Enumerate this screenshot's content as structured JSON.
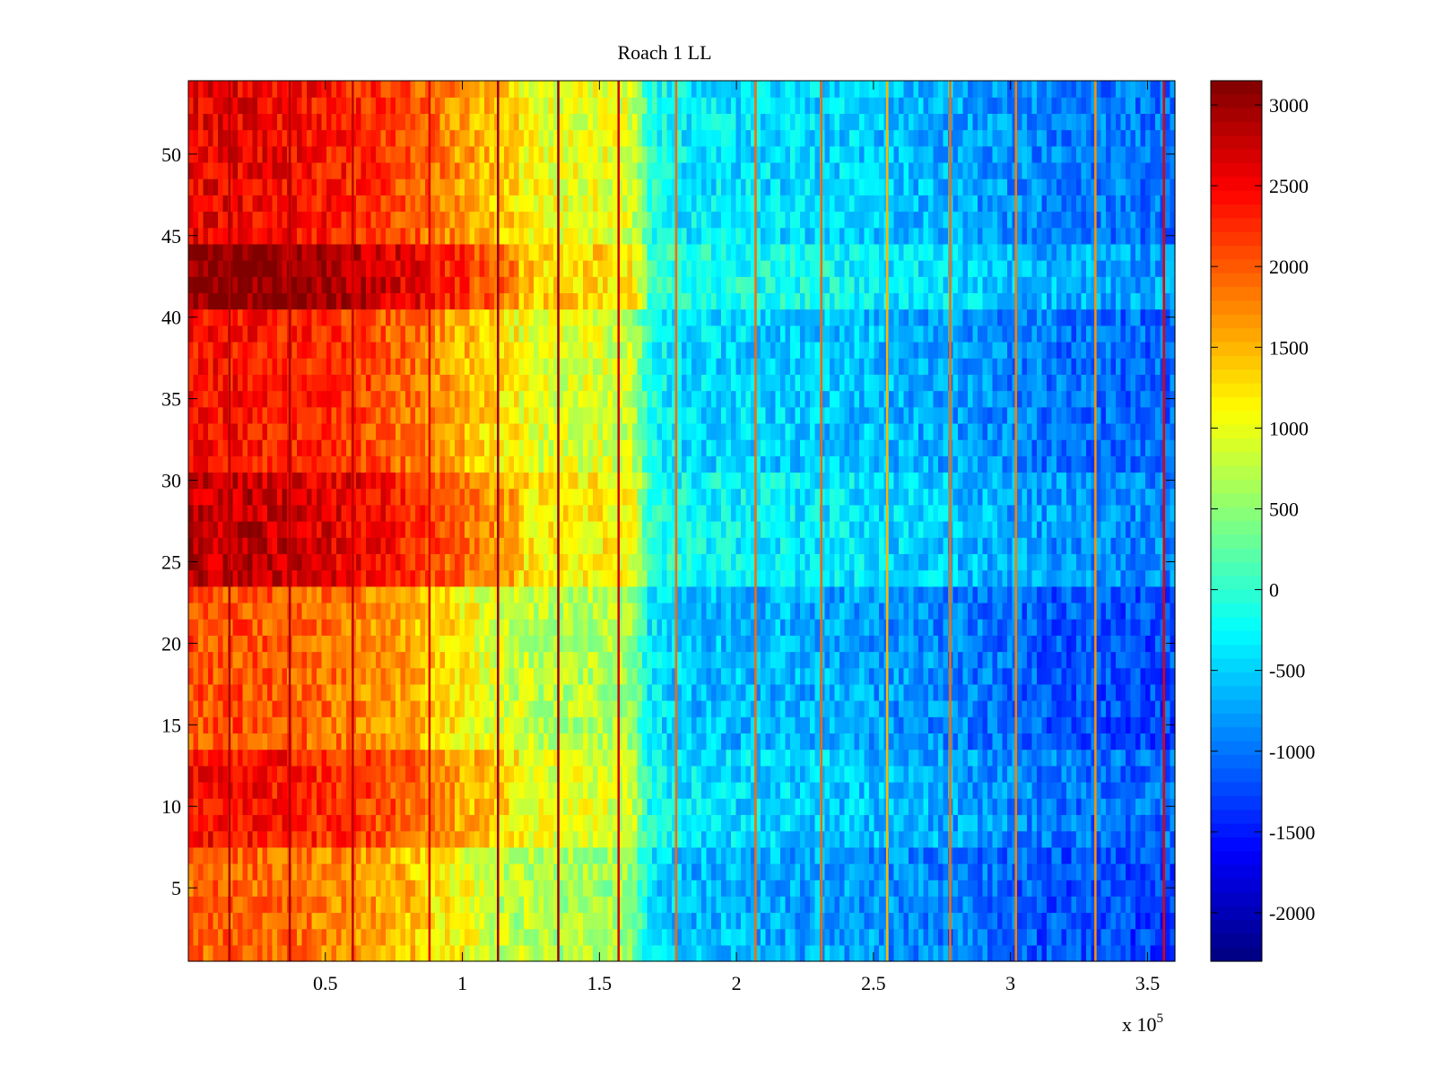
{
  "window_title": "Roach 1 LL",
  "chart_data": {
    "type": "heatmap",
    "title": "Roach 1 LL",
    "xlabel": "",
    "ylabel": "",
    "x_exponent_label": "x 10",
    "x_exponent_power": "5",
    "xlim": [
      0,
      360000
    ],
    "ylim": [
      0.5,
      54.5
    ],
    "x_ticks": [
      50000,
      100000,
      150000,
      200000,
      250000,
      300000,
      350000
    ],
    "x_tick_labels": [
      "0.5",
      "1",
      "1.5",
      "2",
      "2.5",
      "3",
      "3.5"
    ],
    "y_ticks": [
      5,
      10,
      15,
      20,
      25,
      30,
      35,
      40,
      45,
      50
    ],
    "y_tick_labels": [
      "5",
      "10",
      "15",
      "20",
      "25",
      "30",
      "35",
      "40",
      "45",
      "50"
    ],
    "rows": 54,
    "colormap": "jet",
    "colorbar": {
      "min": -2300,
      "max": 3150,
      "ticks": [
        3000,
        2500,
        2000,
        1500,
        1000,
        500,
        0,
        -500,
        -1000,
        -1500,
        -2000
      ],
      "tick_labels": [
        "3000",
        "2500",
        "2000",
        "1500",
        "1000",
        "500",
        "0",
        "-500",
        "-1000",
        "-1500",
        "-2000"
      ]
    },
    "x_profile": {
      "x": [
        0,
        20000,
        40000,
        60000,
        80000,
        100000,
        115000,
        130000,
        150000,
        162000,
        168000,
        180000,
        200000,
        240000,
        280000,
        310000,
        340000,
        360000
      ],
      "value": [
        2300,
        2300,
        2200,
        2050,
        1800,
        1400,
        1100,
        850,
        850,
        750,
        -200,
        -450,
        -500,
        -600,
        -800,
        -1000,
        -1100,
        -1100
      ]
    },
    "row_modulation": [
      {
        "y_from": 0.5,
        "y_to": 7.5,
        "delta": -350
      },
      {
        "y_from": 7.5,
        "y_to": 13.5,
        "delta": 150
      },
      {
        "y_from": 13.5,
        "y_to": 23.5,
        "delta": -250
      },
      {
        "y_from": 23.5,
        "y_to": 30.5,
        "delta": 500
      },
      {
        "y_from": 30.5,
        "y_to": 40.5,
        "delta": 100
      },
      {
        "y_from": 40.5,
        "y_to": 44.5,
        "delta": 800
      },
      {
        "y_from": 44.5,
        "y_to": 54.5,
        "delta": 250
      }
    ],
    "vertical_lines": [
      {
        "x": 15000,
        "value": 2900
      },
      {
        "x": 37000,
        "value": 2900
      },
      {
        "x": 60000,
        "value": 2800
      },
      {
        "x": 88000,
        "value": 2600
      },
      {
        "x": 113000,
        "value": 3000
      },
      {
        "x": 135000,
        "value": 3000
      },
      {
        "x": 157000,
        "value": 2700
      },
      {
        "x": 178000,
        "value": 1900
      },
      {
        "x": 207000,
        "value": 1900
      },
      {
        "x": 231000,
        "value": 1900
      },
      {
        "x": 255000,
        "value": 1500
      },
      {
        "x": 278000,
        "value": 1900
      },
      {
        "x": 302000,
        "value": 1800
      },
      {
        "x": 331000,
        "value": 1700
      },
      {
        "x": 356000,
        "value": 2600
      }
    ]
  }
}
